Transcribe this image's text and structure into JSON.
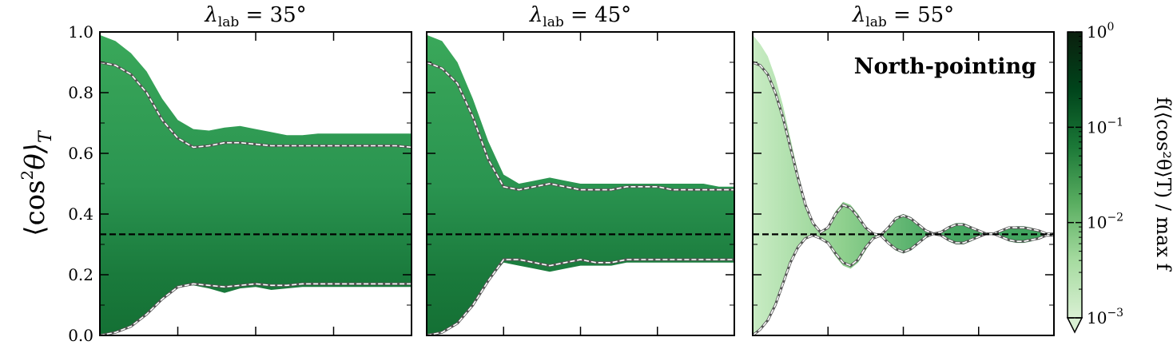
{
  "figure": {
    "ylabel_main": "⟨cos",
    "ylabel_sup": "2",
    "ylabel_theta": "θ⟩",
    "ylabel_sub": "T",
    "annotation": "North-pointing",
    "colorbar_label": "f(⟨cos²θ⟩T) / max f"
  },
  "chart_data": [
    {
      "type": "area",
      "title_prefix": "λ",
      "title_sub": "lab",
      "title_value": " = 35°",
      "ylim": [
        0,
        1
      ],
      "yticks": [
        "0.0",
        "0.2",
        "0.4",
        "0.6",
        "0.8",
        "1.0"
      ],
      "reference_line": 0.3333,
      "x": [
        0,
        0.05,
        0.1,
        0.15,
        0.2,
        0.25,
        0.3,
        0.35,
        0.4,
        0.45,
        0.5,
        0.55,
        0.6,
        0.65,
        0.7,
        0.75,
        0.8,
        0.85,
        0.9,
        0.95,
        1.0
      ],
      "upper_envelope": [
        0.99,
        0.97,
        0.93,
        0.87,
        0.78,
        0.71,
        0.68,
        0.675,
        0.685,
        0.69,
        0.68,
        0.67,
        0.66,
        0.66,
        0.665,
        0.665,
        0.665,
        0.665,
        0.665,
        0.665,
        0.665
      ],
      "lower_envelope": [
        0.0,
        0.01,
        0.03,
        0.07,
        0.12,
        0.16,
        0.165,
        0.155,
        0.14,
        0.155,
        0.16,
        0.15,
        0.155,
        0.16,
        0.16,
        0.16,
        0.16,
        0.16,
        0.16,
        0.16,
        0.16
      ],
      "upper_contour": [
        0.9,
        0.89,
        0.86,
        0.8,
        0.71,
        0.65,
        0.62,
        0.625,
        0.635,
        0.635,
        0.63,
        0.625,
        0.625,
        0.625,
        0.625,
        0.625,
        0.625,
        0.625,
        0.625,
        0.625,
        0.62
      ],
      "lower_contour": [
        0.0,
        0.01,
        0.03,
        0.07,
        0.12,
        0.16,
        0.17,
        0.165,
        0.16,
        0.165,
        0.17,
        0.165,
        0.165,
        0.17,
        0.17,
        0.17,
        0.17,
        0.17,
        0.17,
        0.17,
        0.17
      ]
    },
    {
      "type": "area",
      "title_prefix": "λ",
      "title_sub": "lab",
      "title_value": " = 45°",
      "ylim": [
        0,
        1
      ],
      "yticks": [
        "0.0",
        "0.2",
        "0.4",
        "0.6",
        "0.8",
        "1.0"
      ],
      "reference_line": 0.3333,
      "x": [
        0,
        0.05,
        0.1,
        0.15,
        0.2,
        0.25,
        0.3,
        0.35,
        0.4,
        0.45,
        0.5,
        0.55,
        0.6,
        0.65,
        0.7,
        0.75,
        0.8,
        0.85,
        0.9,
        0.95,
        1.0
      ],
      "upper_envelope": [
        0.99,
        0.97,
        0.9,
        0.78,
        0.64,
        0.53,
        0.5,
        0.51,
        0.52,
        0.51,
        0.5,
        0.5,
        0.5,
        0.5,
        0.5,
        0.5,
        0.5,
        0.5,
        0.5,
        0.49,
        0.49
      ],
      "lower_envelope": [
        0.0,
        0.01,
        0.04,
        0.1,
        0.18,
        0.24,
        0.23,
        0.22,
        0.21,
        0.22,
        0.23,
        0.23,
        0.23,
        0.24,
        0.24,
        0.24,
        0.24,
        0.24,
        0.24,
        0.24,
        0.24
      ],
      "upper_contour": [
        0.9,
        0.88,
        0.83,
        0.72,
        0.58,
        0.49,
        0.48,
        0.49,
        0.5,
        0.49,
        0.48,
        0.48,
        0.48,
        0.49,
        0.49,
        0.49,
        0.48,
        0.48,
        0.48,
        0.48,
        0.48
      ],
      "lower_contour": [
        0.0,
        0.01,
        0.04,
        0.1,
        0.18,
        0.25,
        0.25,
        0.24,
        0.23,
        0.24,
        0.25,
        0.24,
        0.24,
        0.25,
        0.25,
        0.25,
        0.25,
        0.25,
        0.25,
        0.25,
        0.25
      ]
    },
    {
      "type": "area",
      "title_prefix": "λ",
      "title_sub": "lab",
      "title_value": " = 55°",
      "ylim": [
        0,
        1
      ],
      "yticks": [
        "0.0",
        "0.2",
        "0.4",
        "0.6",
        "0.8",
        "1.0"
      ],
      "reference_line": 0.3333,
      "x": [
        0,
        0.025,
        0.05,
        0.075,
        0.1,
        0.125,
        0.15,
        0.175,
        0.2,
        0.225,
        0.25,
        0.275,
        0.3,
        0.325,
        0.35,
        0.375,
        0.4,
        0.425,
        0.45,
        0.475,
        0.5,
        0.525,
        0.55,
        0.575,
        0.6,
        0.625,
        0.65,
        0.675,
        0.7,
        0.725,
        0.75,
        0.775,
        0.8,
        0.825,
        0.85,
        0.875,
        0.9,
        0.925,
        0.95,
        0.975,
        1.0
      ],
      "upper_envelope": [
        0.99,
        0.96,
        0.92,
        0.85,
        0.76,
        0.65,
        0.54,
        0.44,
        0.37,
        0.34,
        0.36,
        0.41,
        0.44,
        0.43,
        0.4,
        0.36,
        0.335,
        0.33,
        0.36,
        0.39,
        0.4,
        0.39,
        0.37,
        0.35,
        0.335,
        0.34,
        0.36,
        0.37,
        0.37,
        0.36,
        0.345,
        0.335,
        0.335,
        0.345,
        0.355,
        0.36,
        0.36,
        0.355,
        0.345,
        0.335,
        0.335
      ],
      "lower_envelope": [
        0.0,
        0.02,
        0.05,
        0.1,
        0.17,
        0.24,
        0.29,
        0.32,
        0.33,
        0.32,
        0.3,
        0.26,
        0.23,
        0.22,
        0.24,
        0.28,
        0.32,
        0.33,
        0.3,
        0.28,
        0.27,
        0.28,
        0.3,
        0.32,
        0.335,
        0.33,
        0.31,
        0.3,
        0.3,
        0.31,
        0.325,
        0.335,
        0.335,
        0.325,
        0.31,
        0.305,
        0.305,
        0.31,
        0.32,
        0.33,
        0.33
      ],
      "upper_contour": [
        0.9,
        0.89,
        0.86,
        0.8,
        0.72,
        0.62,
        0.52,
        0.43,
        0.37,
        0.34,
        0.355,
        0.4,
        0.43,
        0.42,
        0.39,
        0.355,
        0.335,
        0.33,
        0.355,
        0.385,
        0.395,
        0.385,
        0.365,
        0.345,
        0.335,
        0.34,
        0.355,
        0.365,
        0.365,
        0.355,
        0.345,
        0.335,
        0.335,
        0.345,
        0.355,
        0.355,
        0.355,
        0.35,
        0.345,
        0.335,
        0.335
      ],
      "lower_contour": [
        0.0,
        0.02,
        0.05,
        0.1,
        0.17,
        0.24,
        0.29,
        0.32,
        0.33,
        0.32,
        0.305,
        0.27,
        0.24,
        0.23,
        0.25,
        0.29,
        0.32,
        0.33,
        0.305,
        0.285,
        0.275,
        0.285,
        0.305,
        0.325,
        0.335,
        0.33,
        0.315,
        0.305,
        0.305,
        0.315,
        0.325,
        0.335,
        0.335,
        0.325,
        0.315,
        0.31,
        0.31,
        0.315,
        0.32,
        0.33,
        0.33
      ]
    }
  ],
  "colorbar": {
    "scale": "log",
    "range": [
      0.001,
      1
    ],
    "ticks": [
      {
        "value": 1,
        "base": "10",
        "exp": "0"
      },
      {
        "value": 0.1,
        "base": "10",
        "exp": "−1"
      },
      {
        "value": 0.01,
        "base": "10",
        "exp": "−2"
      },
      {
        "value": 0.001,
        "base": "10",
        "exp": "−3"
      }
    ],
    "colors": [
      "#d9f0d3",
      "#a6dba0",
      "#5aae61",
      "#1b7837",
      "#00441b",
      "#0a1f0d"
    ],
    "extend": "min"
  },
  "colors": {
    "fill_light": "#a7dba3",
    "fill_mid": "#2e9a50",
    "fill_dark": "#146c34",
    "contour_outer": "#555555",
    "contour_inner": "#ffffff",
    "reference": "#000000"
  }
}
